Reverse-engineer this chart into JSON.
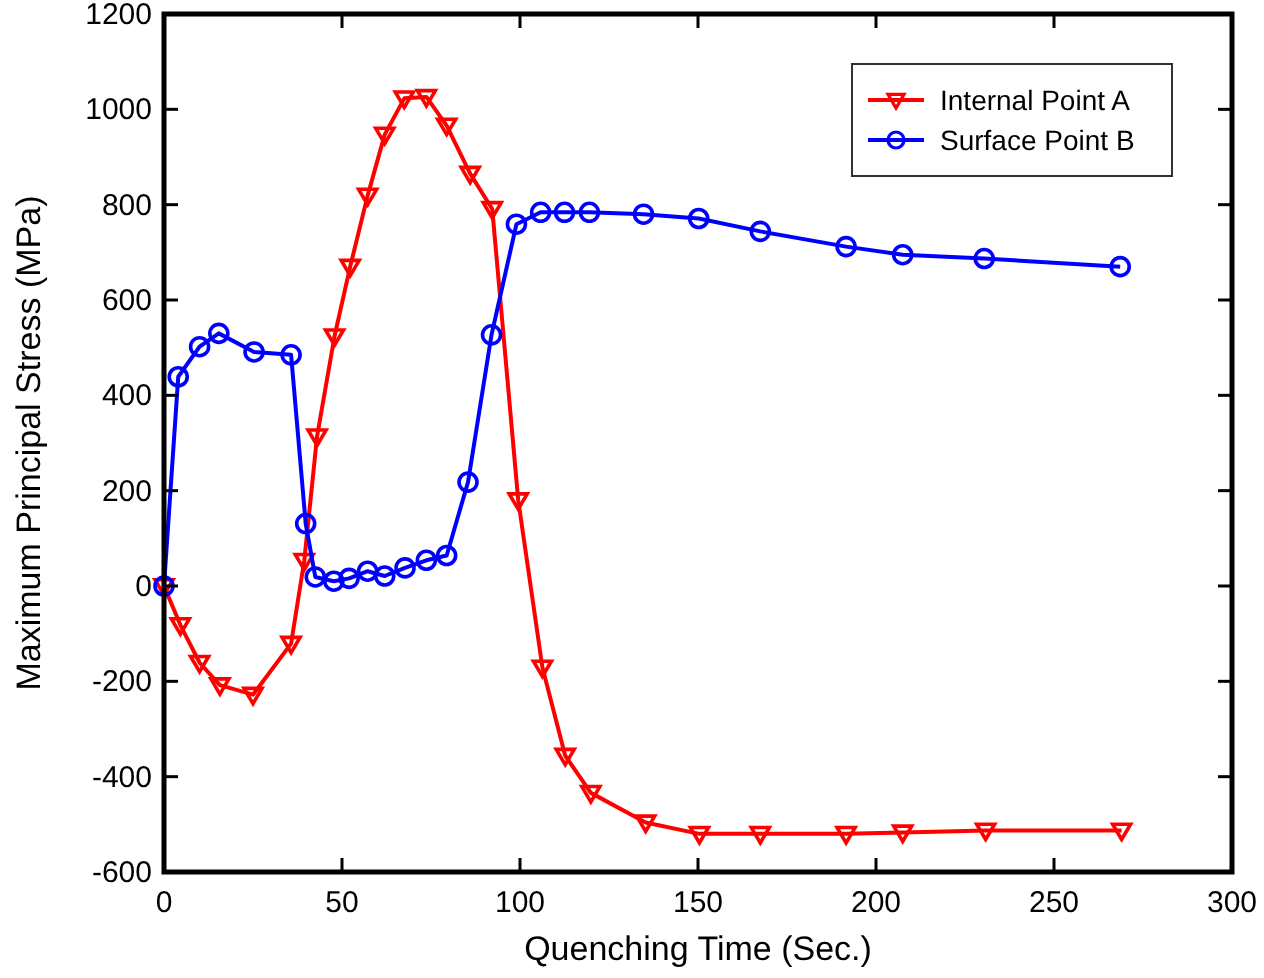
{
  "chart_data": {
    "type": "line",
    "xlabel": "Quenching Time (Sec.)",
    "ylabel": "Maximum Principal Stress (MPa)",
    "xlim": [
      0,
      300
    ],
    "xticks": [
      0,
      50,
      100,
      150,
      200,
      250,
      300
    ],
    "ylim": [
      -600,
      1200
    ],
    "yticks": [
      -600,
      -400,
      -200,
      0,
      200,
      400,
      600,
      800,
      1000,
      1200
    ],
    "grid": false,
    "legend": "top right",
    "line_style": "solid",
    "series": [
      {
        "name": "Internal Point A",
        "color": "#ff0000",
        "marker": "triangle",
        "x": [
          0,
          4.6,
          10,
          15.7,
          25,
          35.7,
          39.4,
          43,
          47.9,
          52.3,
          57.2,
          62,
          67.5,
          73.7,
          79.4,
          86,
          92.2,
          99.5,
          106.3,
          112.7,
          119.9,
          135.3,
          150.4,
          167.5,
          191.6,
          207.5,
          230.8,
          269
        ],
        "values": [
          0,
          -82,
          -161,
          -208,
          -228,
          -121,
          53,
          314,
          524,
          670,
          819,
          947,
          1023,
          1026,
          966,
          865,
          791,
          180,
          -171,
          -356,
          -434,
          -496,
          -520,
          -520,
          -520,
          -517,
          -513,
          -513
        ]
      },
      {
        "name": "Surface Point B",
        "color": "#0000ff",
        "marker": "circle",
        "x": [
          0,
          4,
          10,
          15.4,
          25.3,
          35.7,
          39.8,
          42.5,
          47.7,
          52,
          57.2,
          62,
          67.7,
          73.7,
          79.4,
          85.4,
          92,
          99,
          105.8,
          112.5,
          119.5,
          134.7,
          150.2,
          167.5,
          191.6,
          207.5,
          230.4,
          268.6
        ],
        "values": [
          0,
          439,
          502,
          530,
          491,
          485,
          131,
          19,
          10,
          16,
          31,
          21,
          38,
          54,
          64,
          218,
          527,
          759,
          784,
          784,
          784,
          780,
          771,
          744,
          712,
          695,
          687,
          670
        ]
      }
    ]
  }
}
